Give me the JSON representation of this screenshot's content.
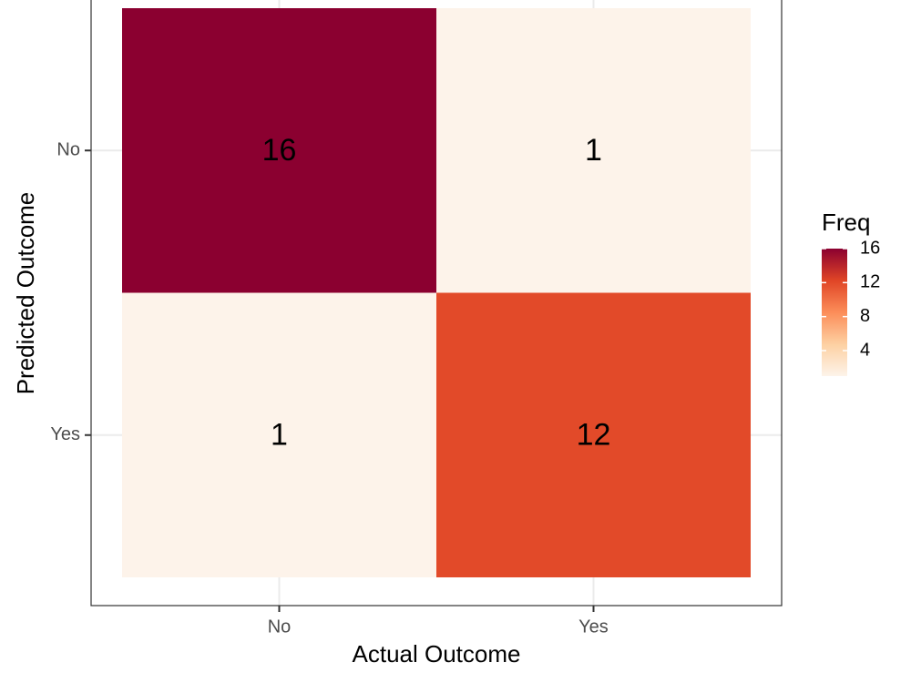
{
  "chart_data": {
    "type": "heatmap",
    "x_label": "Actual Outcome",
    "y_label": "Predicted Outcome",
    "x_categories": [
      "No",
      "Yes"
    ],
    "y_categories": [
      "No",
      "Yes"
    ],
    "values": [
      [
        16,
        1
      ],
      [
        1,
        12
      ]
    ],
    "grid": true,
    "colorbar": {
      "title": "Freq",
      "lim": [
        1,
        16
      ],
      "ticks": [
        4,
        8,
        12,
        16
      ],
      "colors": [
        "#fdf3ea",
        "#fdd0a2",
        "#fc8d59",
        "#e04526",
        "#8b0030"
      ]
    }
  }
}
